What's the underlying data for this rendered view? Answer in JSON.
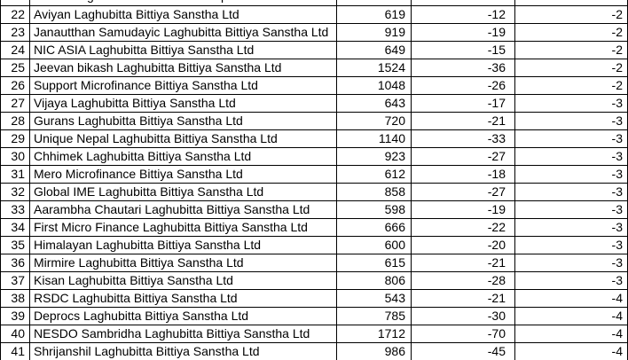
{
  "app": {
    "description": "Spreadsheet crop listing microfinance company stocks, rows 22-41"
  },
  "partial_top_row": {
    "fragment1": "g",
    "fragment2": "p"
  },
  "colors": {
    "grid_border": "#000000",
    "text": "#000000",
    "cell_background": "#ffffff"
  },
  "table": {
    "columns": [
      "row_no",
      "company",
      "price",
      "change",
      "change_pct"
    ],
    "rows": [
      {
        "row_no": "22",
        "company": "Aviyan Laghubitta Bittiya Sanstha Ltd",
        "price": "619",
        "change": "-12",
        "change_pct": "-2"
      },
      {
        "row_no": "23",
        "company": "Janautthan Samudayic Laghubitta Bittiya Sanstha Ltd",
        "price": "919",
        "change": "-19",
        "change_pct": "-2"
      },
      {
        "row_no": "24",
        "company": "NIC ASIA Laghubitta Bittiya Sanstha Ltd",
        "price": "649",
        "change": "-15",
        "change_pct": "-2"
      },
      {
        "row_no": "25",
        "company": "Jeevan bikash Laghubitta Bittiya Sanstha Ltd",
        "price": "1524",
        "change": "-36",
        "change_pct": "-2"
      },
      {
        "row_no": "26",
        "company": "Support Microfinance Bittiya Sanstha Ltd",
        "price": "1048",
        "change": "-26",
        "change_pct": "-2"
      },
      {
        "row_no": "27",
        "company": "Vijaya Laghubitta Bittiya Sanstha Ltd",
        "price": "643",
        "change": "-17",
        "change_pct": "-3"
      },
      {
        "row_no": "28",
        "company": "Gurans Laghubitta Bittiya Sanstha Ltd",
        "price": "720",
        "change": "-21",
        "change_pct": "-3"
      },
      {
        "row_no": "29",
        "company": "Unique Nepal Laghubitta Bittiya Sanstha Ltd",
        "price": "1140",
        "change": "-33",
        "change_pct": "-3"
      },
      {
        "row_no": "30",
        "company": "Chhimek Laghubitta Bittiya Sanstha Ltd",
        "price": "923",
        "change": "-27",
        "change_pct": "-3"
      },
      {
        "row_no": "31",
        "company": "Mero Microfinance Bittiya Sanstha Ltd",
        "price": "612",
        "change": "-18",
        "change_pct": "-3"
      },
      {
        "row_no": "32",
        "company": "Global IME Laghubitta Bittiya Sanstha Ltd",
        "price": "858",
        "change": "-27",
        "change_pct": "-3"
      },
      {
        "row_no": "33",
        "company": "Aarambha Chautari Laghubitta Bittiya Sanstha Ltd",
        "price": "598",
        "change": "-19",
        "change_pct": "-3"
      },
      {
        "row_no": "34",
        "company": "First Micro Finance Laghubitta Bittiya Sanstha Ltd",
        "price": "666",
        "change": "-22",
        "change_pct": "-3"
      },
      {
        "row_no": "35",
        "company": "Himalayan Laghubitta Bittiya Sanstha Ltd",
        "price": "600",
        "change": "-20",
        "change_pct": "-3"
      },
      {
        "row_no": "36",
        "company": "Mirmire Laghubitta Bittiya Sanstha Ltd",
        "price": "615",
        "change": "-21",
        "change_pct": "-3"
      },
      {
        "row_no": "37",
        "company": "Kisan Laghubitta Bittiya Sanstha Ltd",
        "price": "806",
        "change": "-28",
        "change_pct": "-3"
      },
      {
        "row_no": "38",
        "company": "RSDC Laghubitta Bittiya Sanstha Ltd",
        "price": "543",
        "change": "-21",
        "change_pct": "-4"
      },
      {
        "row_no": "39",
        "company": "Deprocs Laghubitta Bittiya Sanstha Ltd",
        "price": "785",
        "change": "-30",
        "change_pct": "-4"
      },
      {
        "row_no": "40",
        "company": "NESDO Sambridha Laghubitta Bittiya Sanstha Ltd",
        "price": "1712",
        "change": "-70",
        "change_pct": "-4"
      },
      {
        "row_no": "41",
        "company": "Shrijanshil Laghubitta Bittiya Sanstha Ltd",
        "price": "986",
        "change": "-45",
        "change_pct": "-4"
      }
    ]
  }
}
